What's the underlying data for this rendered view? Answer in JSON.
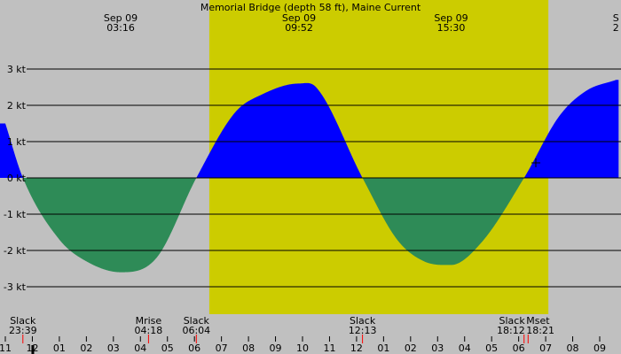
{
  "chart_data": {
    "type": "area",
    "title": "Memorial Bridge (depth 58 ft), Maine Current",
    "xlabel": "",
    "ylabel": "",
    "y_unit": "kt",
    "ylim": [
      -3.3,
      3.3
    ],
    "xlim": [
      "Sep 08 22:46",
      "Sep 10 09:50"
    ],
    "grid": true,
    "y_ticks": [
      {
        "value": 3,
        "label": "3 kt"
      },
      {
        "value": 2,
        "label": "2 kt"
      },
      {
        "value": 1,
        "label": "1 kt"
      },
      {
        "value": 0,
        "label": "0 kt"
      },
      {
        "value": -1,
        "label": "-1 kt"
      },
      {
        "value": -2,
        "label": "-2 kt"
      },
      {
        "value": -3,
        "label": "-3 kt"
      }
    ],
    "x_ticks": [
      {
        "t": 11,
        "label": "11"
      },
      {
        "t": 12,
        "label": "12"
      },
      {
        "t": 13,
        "label": "01"
      },
      {
        "t": 14,
        "label": "02"
      },
      {
        "t": 15,
        "label": "03"
      },
      {
        "t": 16,
        "label": "04"
      },
      {
        "t": 17,
        "label": "05"
      },
      {
        "t": 18,
        "label": "06"
      },
      {
        "t": 19,
        "label": "07"
      },
      {
        "t": 20,
        "label": "08"
      },
      {
        "t": 21,
        "label": "09"
      },
      {
        "t": 22,
        "label": "10"
      },
      {
        "t": 23,
        "label": "11"
      },
      {
        "t": 24,
        "label": "12"
      },
      {
        "t": 25,
        "label": "01"
      },
      {
        "t": 26,
        "label": "02"
      },
      {
        "t": 27,
        "label": "03"
      },
      {
        "t": 28,
        "label": "04"
      },
      {
        "t": 29,
        "label": "05"
      },
      {
        "t": 30,
        "label": "06"
      },
      {
        "t": 31,
        "label": "07"
      },
      {
        "t": 32,
        "label": "08"
      },
      {
        "t": 33,
        "label": "09"
      }
    ],
    "daylight": {
      "start": 18.55,
      "end": 31.1
    },
    "series": [
      {
        "type": "current_speed",
        "points": [
          {
            "t": 11.0,
            "v": 1.5
          },
          {
            "t": 11.65,
            "v": 0
          },
          {
            "t": 13.0,
            "v": -1.7
          },
          {
            "t": 14.0,
            "v": -2.3
          },
          {
            "t": 15.27,
            "v": -2.6
          },
          {
            "t": 16.6,
            "v": -2.2
          },
          {
            "t": 18.07,
            "v": 0
          },
          {
            "t": 19.5,
            "v": 1.8
          },
          {
            "t": 20.5,
            "v": 2.3
          },
          {
            "t": 21.87,
            "v": 2.6
          },
          {
            "t": 22.5,
            "v": 2.5
          },
          {
            "t": 24.22,
            "v": 0
          },
          {
            "t": 25.5,
            "v": -1.7
          },
          {
            "t": 26.5,
            "v": -2.3
          },
          {
            "t": 27.5,
            "v": -2.4
          },
          {
            "t": 28.6,
            "v": -1.8
          },
          {
            "t": 30.2,
            "v": 0
          },
          {
            "t": 31.5,
            "v": 1.7
          },
          {
            "t": 32.5,
            "v": 2.4
          },
          {
            "t": 33.6,
            "v": 2.7
          }
        ]
      }
    ],
    "top_annotations": [
      {
        "t": 15.27,
        "date": "Sep 09",
        "time": "03:16"
      },
      {
        "t": 21.87,
        "date": "Sep 09",
        "time": "09:52"
      },
      {
        "t": 27.5,
        "date": "Sep 09",
        "time": "15:30"
      },
      {
        "t": 33.6,
        "date": "S",
        "time": "2"
      }
    ],
    "bottom_events": [
      {
        "t": 11.65,
        "name": "Slack",
        "time": "23:39"
      },
      {
        "t": 16.3,
        "name": "Mrise",
        "time": "04:18"
      },
      {
        "t": 18.07,
        "name": "Slack",
        "time": "06:04"
      },
      {
        "t": 24.22,
        "name": "Slack",
        "time": "12:13"
      },
      {
        "t": 30.2,
        "name": "Slack",
        "time": "18:12"
      },
      {
        "t": 30.35,
        "name": "Mset",
        "time": "18:21"
      }
    ],
    "colors": {
      "background": "#c0c0c0",
      "daylight": "#cccc00",
      "flood": "#0000ff",
      "ebb": "#2e8b57",
      "grid": "#000000",
      "event_tick": "#ff0000"
    }
  }
}
